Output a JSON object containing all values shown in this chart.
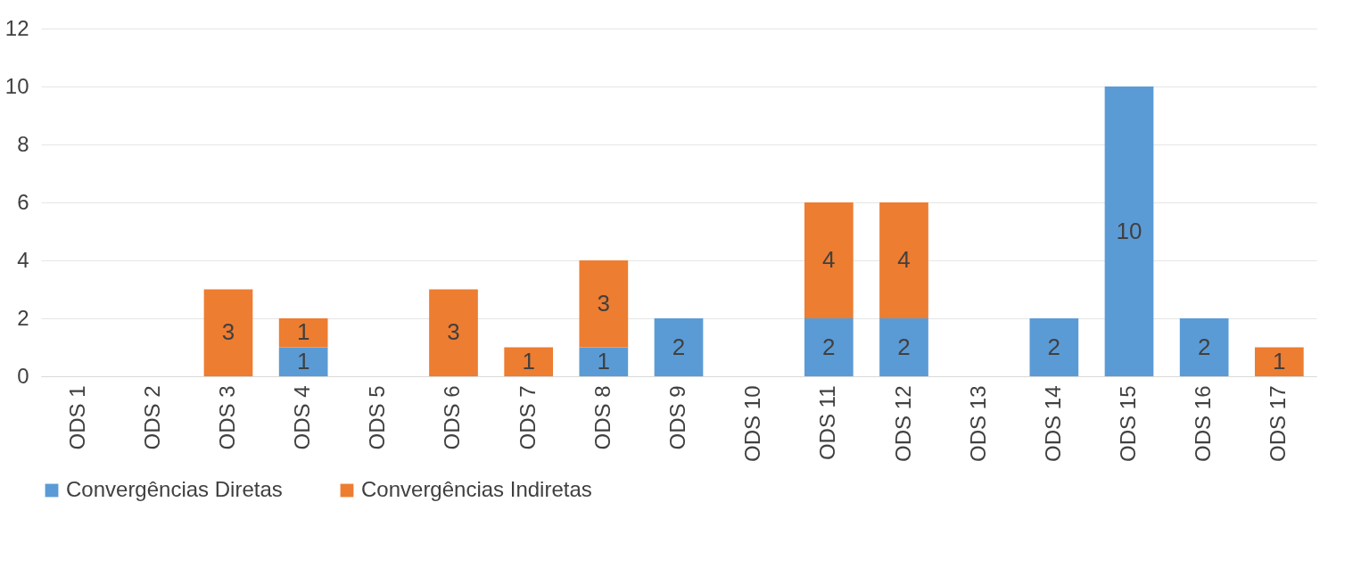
{
  "chart_data": {
    "type": "bar",
    "stacked": true,
    "categories": [
      "ODS 1",
      "ODS 2",
      "ODS 3",
      "ODS 4",
      "ODS 5",
      "ODS 6",
      "ODS 7",
      "ODS 8",
      "ODS 9",
      "ODS 10",
      "ODS 11",
      "ODS 12",
      "ODS 13",
      "ODS 14",
      "ODS 15",
      "ODS 16",
      "ODS 17"
    ],
    "series": [
      {
        "name": "Convergências Diretas",
        "color": "#5b9bd5",
        "values": [
          null,
          null,
          null,
          1,
          null,
          null,
          null,
          1,
          2,
          null,
          2,
          2,
          null,
          2,
          10,
          2,
          null
        ]
      },
      {
        "name": "Convergências Indiretas",
        "color": "#ed7d31",
        "values": [
          null,
          null,
          3,
          1,
          null,
          3,
          1,
          3,
          null,
          null,
          4,
          4,
          null,
          null,
          null,
          null,
          1
        ]
      }
    ],
    "ylim": [
      0,
      12
    ],
    "yticks": [
      0,
      2,
      4,
      6,
      8,
      10,
      12
    ],
    "grid": "y",
    "legend": "bottom",
    "data_labels": true
  }
}
